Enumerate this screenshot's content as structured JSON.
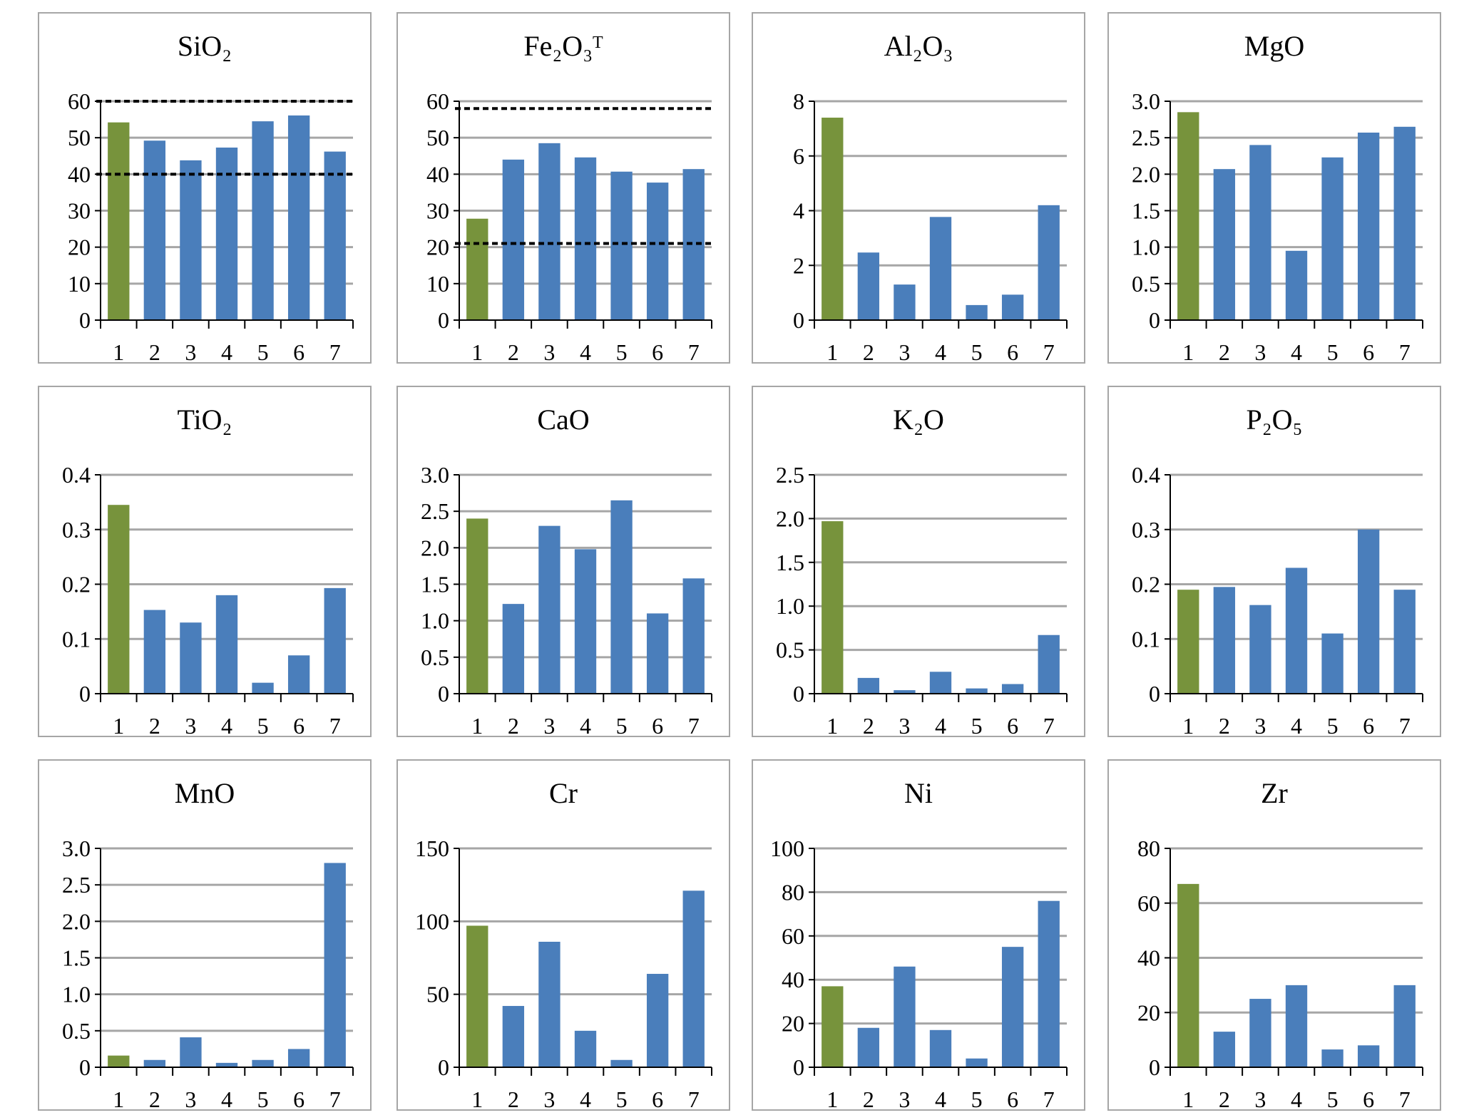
{
  "colors": {
    "first_bar": "#77933c",
    "other_bars": "#4a7ebb",
    "grid": "#a6a6a6",
    "axis": "#000000",
    "reference_line": "#000000"
  },
  "chart_data": [
    {
      "type": "bar",
      "title": "SiO₂",
      "categories": [
        "1",
        "2",
        "3",
        "4",
        "5",
        "6",
        "7"
      ],
      "values": [
        54.2,
        49.2,
        43.8,
        47.3,
        54.5,
        56.1,
        46.2
      ],
      "ylim": [
        0,
        60
      ],
      "yticks": [
        "0",
        "10",
        "20",
        "30",
        "40",
        "50",
        "60"
      ],
      "reference_lines": [
        60,
        40
      ],
      "grid": true
    },
    {
      "type": "bar",
      "title": "Fe₂O₃ᵀ",
      "categories": [
        "1",
        "2",
        "3",
        "4",
        "5",
        "6",
        "7"
      ],
      "values": [
        27.8,
        44.0,
        48.5,
        44.6,
        40.7,
        37.7,
        41.4
      ],
      "ylim": [
        0,
        60
      ],
      "yticks": [
        "0",
        "10",
        "20",
        "30",
        "40",
        "50",
        "60"
      ],
      "reference_lines": [
        58,
        21
      ],
      "grid": true
    },
    {
      "type": "bar",
      "title": "Al₂O₃",
      "categories": [
        "1",
        "2",
        "3",
        "4",
        "5",
        "6",
        "7"
      ],
      "values": [
        7.4,
        2.47,
        1.3,
        3.77,
        0.55,
        0.93,
        4.2
      ],
      "ylim": [
        0,
        8
      ],
      "yticks": [
        "0",
        "2",
        "4",
        "6",
        "8"
      ],
      "reference_lines": [],
      "grid": true
    },
    {
      "type": "bar",
      "title": "MgO",
      "categories": [
        "1",
        "2",
        "3",
        "4",
        "5",
        "6",
        "7"
      ],
      "values": [
        2.85,
        2.07,
        2.4,
        0.95,
        2.23,
        2.57,
        2.65
      ],
      "ylim": [
        0,
        3
      ],
      "yticks": [
        "0",
        "0.5",
        "1.0",
        "1.5",
        "2.0",
        "2.5",
        "3.0"
      ],
      "reference_lines": [],
      "grid": true
    },
    {
      "type": "bar",
      "title": "TiO₂",
      "categories": [
        "1",
        "2",
        "3",
        "4",
        "5",
        "6",
        "7"
      ],
      "values": [
        0.345,
        0.153,
        0.13,
        0.18,
        0.02,
        0.07,
        0.193
      ],
      "ylim": [
        0,
        0.4
      ],
      "yticks": [
        "0",
        "0.1",
        "0.2",
        "0.3",
        "0.4"
      ],
      "reference_lines": [],
      "grid": true
    },
    {
      "type": "bar",
      "title": "CaO",
      "categories": [
        "1",
        "2",
        "3",
        "4",
        "5",
        "6",
        "7"
      ],
      "values": [
        2.4,
        1.23,
        2.3,
        1.98,
        2.65,
        1.1,
        1.58
      ],
      "ylim": [
        0,
        3
      ],
      "yticks": [
        "0",
        "0.5",
        "1.0",
        "1.5",
        "2.0",
        "2.5",
        "3.0"
      ],
      "reference_lines": [],
      "grid": true
    },
    {
      "type": "bar",
      "title": "K₂O",
      "categories": [
        "1",
        "2",
        "3",
        "4",
        "5",
        "6",
        "7"
      ],
      "values": [
        1.97,
        0.18,
        0.04,
        0.25,
        0.06,
        0.11,
        0.67
      ],
      "ylim": [
        0,
        2.5
      ],
      "yticks": [
        "0",
        "0.5",
        "1.0",
        "1.5",
        "2.0",
        "2.5"
      ],
      "reference_lines": [],
      "grid": true
    },
    {
      "type": "bar",
      "title": "P₂O₅",
      "categories": [
        "1",
        "2",
        "3",
        "4",
        "5",
        "6",
        "7"
      ],
      "values": [
        0.19,
        0.195,
        0.162,
        0.23,
        0.11,
        0.3,
        0.19
      ],
      "ylim": [
        0,
        0.4
      ],
      "yticks": [
        "0",
        "0.1",
        "0.2",
        "0.3",
        "0.4"
      ],
      "reference_lines": [],
      "grid": true
    },
    {
      "type": "bar",
      "title": "MnO",
      "categories": [
        "1",
        "2",
        "3",
        "4",
        "5",
        "6",
        "7"
      ],
      "values": [
        0.16,
        0.1,
        0.41,
        0.06,
        0.1,
        0.25,
        2.8
      ],
      "ylim": [
        0,
        3
      ],
      "yticks": [
        "0",
        "0.5",
        "1.0",
        "1.5",
        "2.0",
        "2.5",
        "3.0"
      ],
      "reference_lines": [],
      "grid": true
    },
    {
      "type": "bar",
      "title": "Cr",
      "categories": [
        "1",
        "2",
        "3",
        "4",
        "5",
        "6",
        "7"
      ],
      "values": [
        97,
        42,
        86,
        25,
        5,
        64,
        121
      ],
      "ylim": [
        0,
        150
      ],
      "yticks": [
        "0",
        "50",
        "100",
        "150"
      ],
      "reference_lines": [],
      "grid": true
    },
    {
      "type": "bar",
      "title": "Ni",
      "categories": [
        "1",
        "2",
        "3",
        "4",
        "5",
        "6",
        "7"
      ],
      "values": [
        37,
        18,
        46,
        17,
        4,
        55,
        76
      ],
      "ylim": [
        0,
        100
      ],
      "yticks": [
        "0",
        "20",
        "40",
        "60",
        "80",
        "100"
      ],
      "reference_lines": [],
      "grid": true
    },
    {
      "type": "bar",
      "title": "Zr",
      "categories": [
        "1",
        "2",
        "3",
        "4",
        "5",
        "6",
        "7"
      ],
      "values": [
        67,
        13,
        25,
        30,
        6.5,
        8,
        30
      ],
      "ylim": [
        0,
        80
      ],
      "yticks": [
        "0",
        "20",
        "40",
        "60",
        "80"
      ],
      "reference_lines": [],
      "grid": true
    }
  ]
}
